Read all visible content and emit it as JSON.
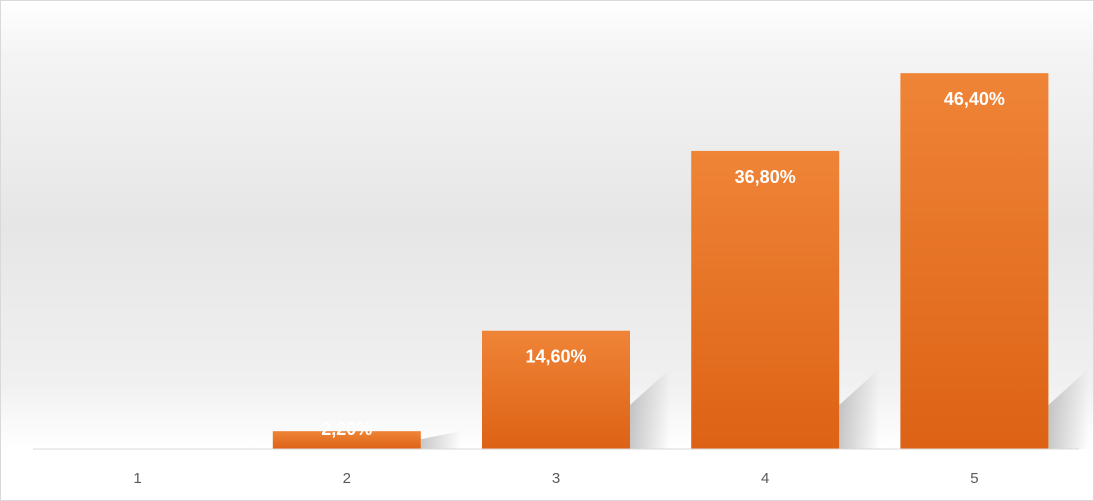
{
  "chart_data": {
    "type": "bar",
    "categories": [
      "1",
      "2",
      "3",
      "4",
      "5"
    ],
    "values": [
      0,
      2.2,
      14.6,
      36.8,
      46.4
    ],
    "data_labels": [
      "",
      "2,20%",
      "14,60%",
      "36,80%",
      "46,40%"
    ],
    "title": "",
    "xlabel": "",
    "ylabel": "",
    "ylim": [
      0,
      50
    ],
    "grid": false,
    "legend": "none",
    "colors": {
      "bar_top": "#ef8437",
      "bar_bottom": "#dd6215",
      "plot_background": "#f5f5f5",
      "axis_line": "#d9d9d9",
      "tick_text": "#595959",
      "label_text": "#ffffff"
    }
  }
}
